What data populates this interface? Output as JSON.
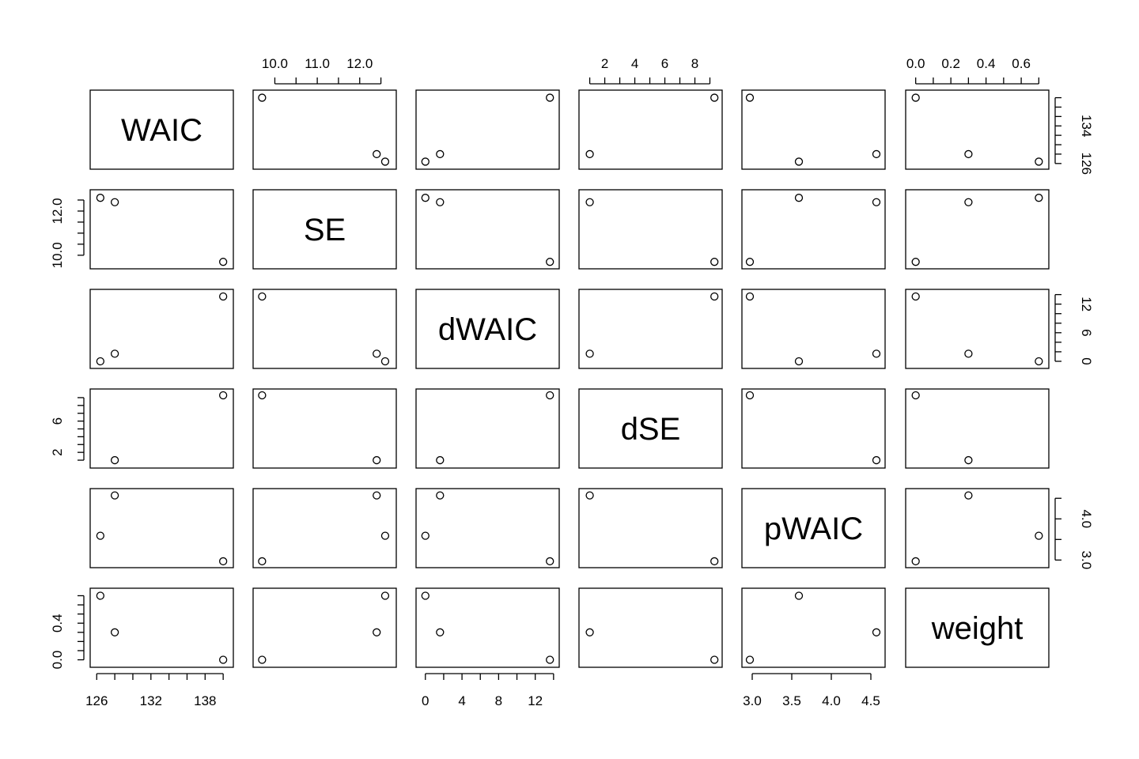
{
  "chart_data": {
    "type": "scatter",
    "subtype": "pairs-matrix",
    "title": "",
    "variables": [
      "WAIC",
      "SE",
      "dWAIC",
      "dSE",
      "pWAIC",
      "weight"
    ],
    "observations": [
      {
        "WAIC": 140.0,
        "SE": 9.7,
        "dWAIC": 13.6,
        "dSE": 9.3,
        "pWAIC": 2.97,
        "weight": 0.0
      },
      {
        "WAIC": 126.4,
        "SE": 12.6,
        "dWAIC": 0.0,
        "dSE": null,
        "pWAIC": 3.59,
        "weight": 0.7
      },
      {
        "WAIC": 128.0,
        "SE": 12.4,
        "dWAIC": 1.6,
        "dSE": 1.0,
        "pWAIC": 4.57,
        "weight": 0.3
      }
    ],
    "ranges": {
      "WAIC": [
        125.8,
        140.6
      ],
      "SE": [
        9.6,
        12.75
      ],
      "dWAIC": [
        -0.5,
        14.1
      ],
      "dSE": [
        0.6,
        9.5
      ],
      "pWAIC": [
        2.93,
        4.62
      ],
      "weight": [
        -0.03,
        0.73
      ]
    },
    "axes": {
      "WAIC": {
        "side": "right",
        "ticks": [
          126,
          128,
          130,
          132,
          134,
          136,
          138,
          140
        ],
        "labels": {
          "126": "126",
          "134": "134"
        }
      },
      "SE": {
        "side": "top",
        "ticks": [
          10.0,
          10.5,
          11.0,
          11.5,
          12.0,
          12.5
        ],
        "labels": {
          "10": "10.0",
          "11": "11.0",
          "12": "12.0"
        }
      },
      "dWAIC": {
        "side": "bottom",
        "ticks": [
          0,
          2,
          4,
          6,
          8,
          10,
          12,
          14
        ],
        "labels": {
          "0": "0",
          "4": "4",
          "8": "8",
          "12": "12"
        }
      },
      "dSE": {
        "side": "top",
        "ticks": [
          1,
          2,
          3,
          4,
          5,
          6,
          7,
          8,
          9
        ],
        "labels": {
          "2": "2",
          "4": "4",
          "6": "6",
          "8": "8"
        }
      },
      "pWAIC": {
        "side": "bottom",
        "ticks": [
          3.0,
          3.5,
          4.0,
          4.5
        ],
        "labels": {
          "3": "3.0",
          "3.5": "3.5",
          "4": "4.0",
          "4.5": "4.5"
        }
      },
      "weight": {
        "side": "top",
        "ticks": [
          0.0,
          0.1,
          0.2,
          0.3,
          0.4,
          0.5,
          0.6,
          0.7
        ],
        "labels": {
          "0": "0.0",
          "0.2": "0.2",
          "0.4": "0.4",
          "0.6": "0.6"
        }
      },
      "WAIC_left": {
        "side": "bottom",
        "ticks": [
          126,
          128,
          130,
          132,
          134,
          136,
          138,
          140
        ],
        "labels": {
          "126": "126",
          "132": "132",
          "138": "138"
        }
      },
      "SE_left": {
        "side": "left",
        "ticks": [
          10.0,
          10.5,
          11.0,
          11.5,
          12.0,
          12.5
        ],
        "labels": {
          "10": "10.0",
          "12": "12.0"
        }
      },
      "dWAIC_right": {
        "side": "right",
        "ticks": [
          0,
          2,
          4,
          6,
          8,
          10,
          12,
          14
        ],
        "labels": {
          "0": "0",
          "6": "6",
          "12": "12"
        }
      },
      "dSE_left": {
        "side": "left",
        "ticks": [
          1,
          2,
          3,
          4,
          5,
          6,
          7,
          8,
          9
        ],
        "labels": {
          "2": "2",
          "6": "6"
        }
      },
      "pWAIC_right": {
        "side": "right",
        "ticks": [
          3.0,
          3.5,
          4.0,
          4.5
        ],
        "labels": {
          "3": "3.0",
          "4": "4.0"
        }
      },
      "weight_left": {
        "side": "left",
        "ticks": [
          0.0,
          0.1,
          0.2,
          0.3,
          0.4,
          0.5,
          0.6,
          0.7
        ],
        "labels": {
          "0": "0.0",
          "0.4": "0.4"
        }
      }
    },
    "grid": false,
    "legend": "none"
  }
}
